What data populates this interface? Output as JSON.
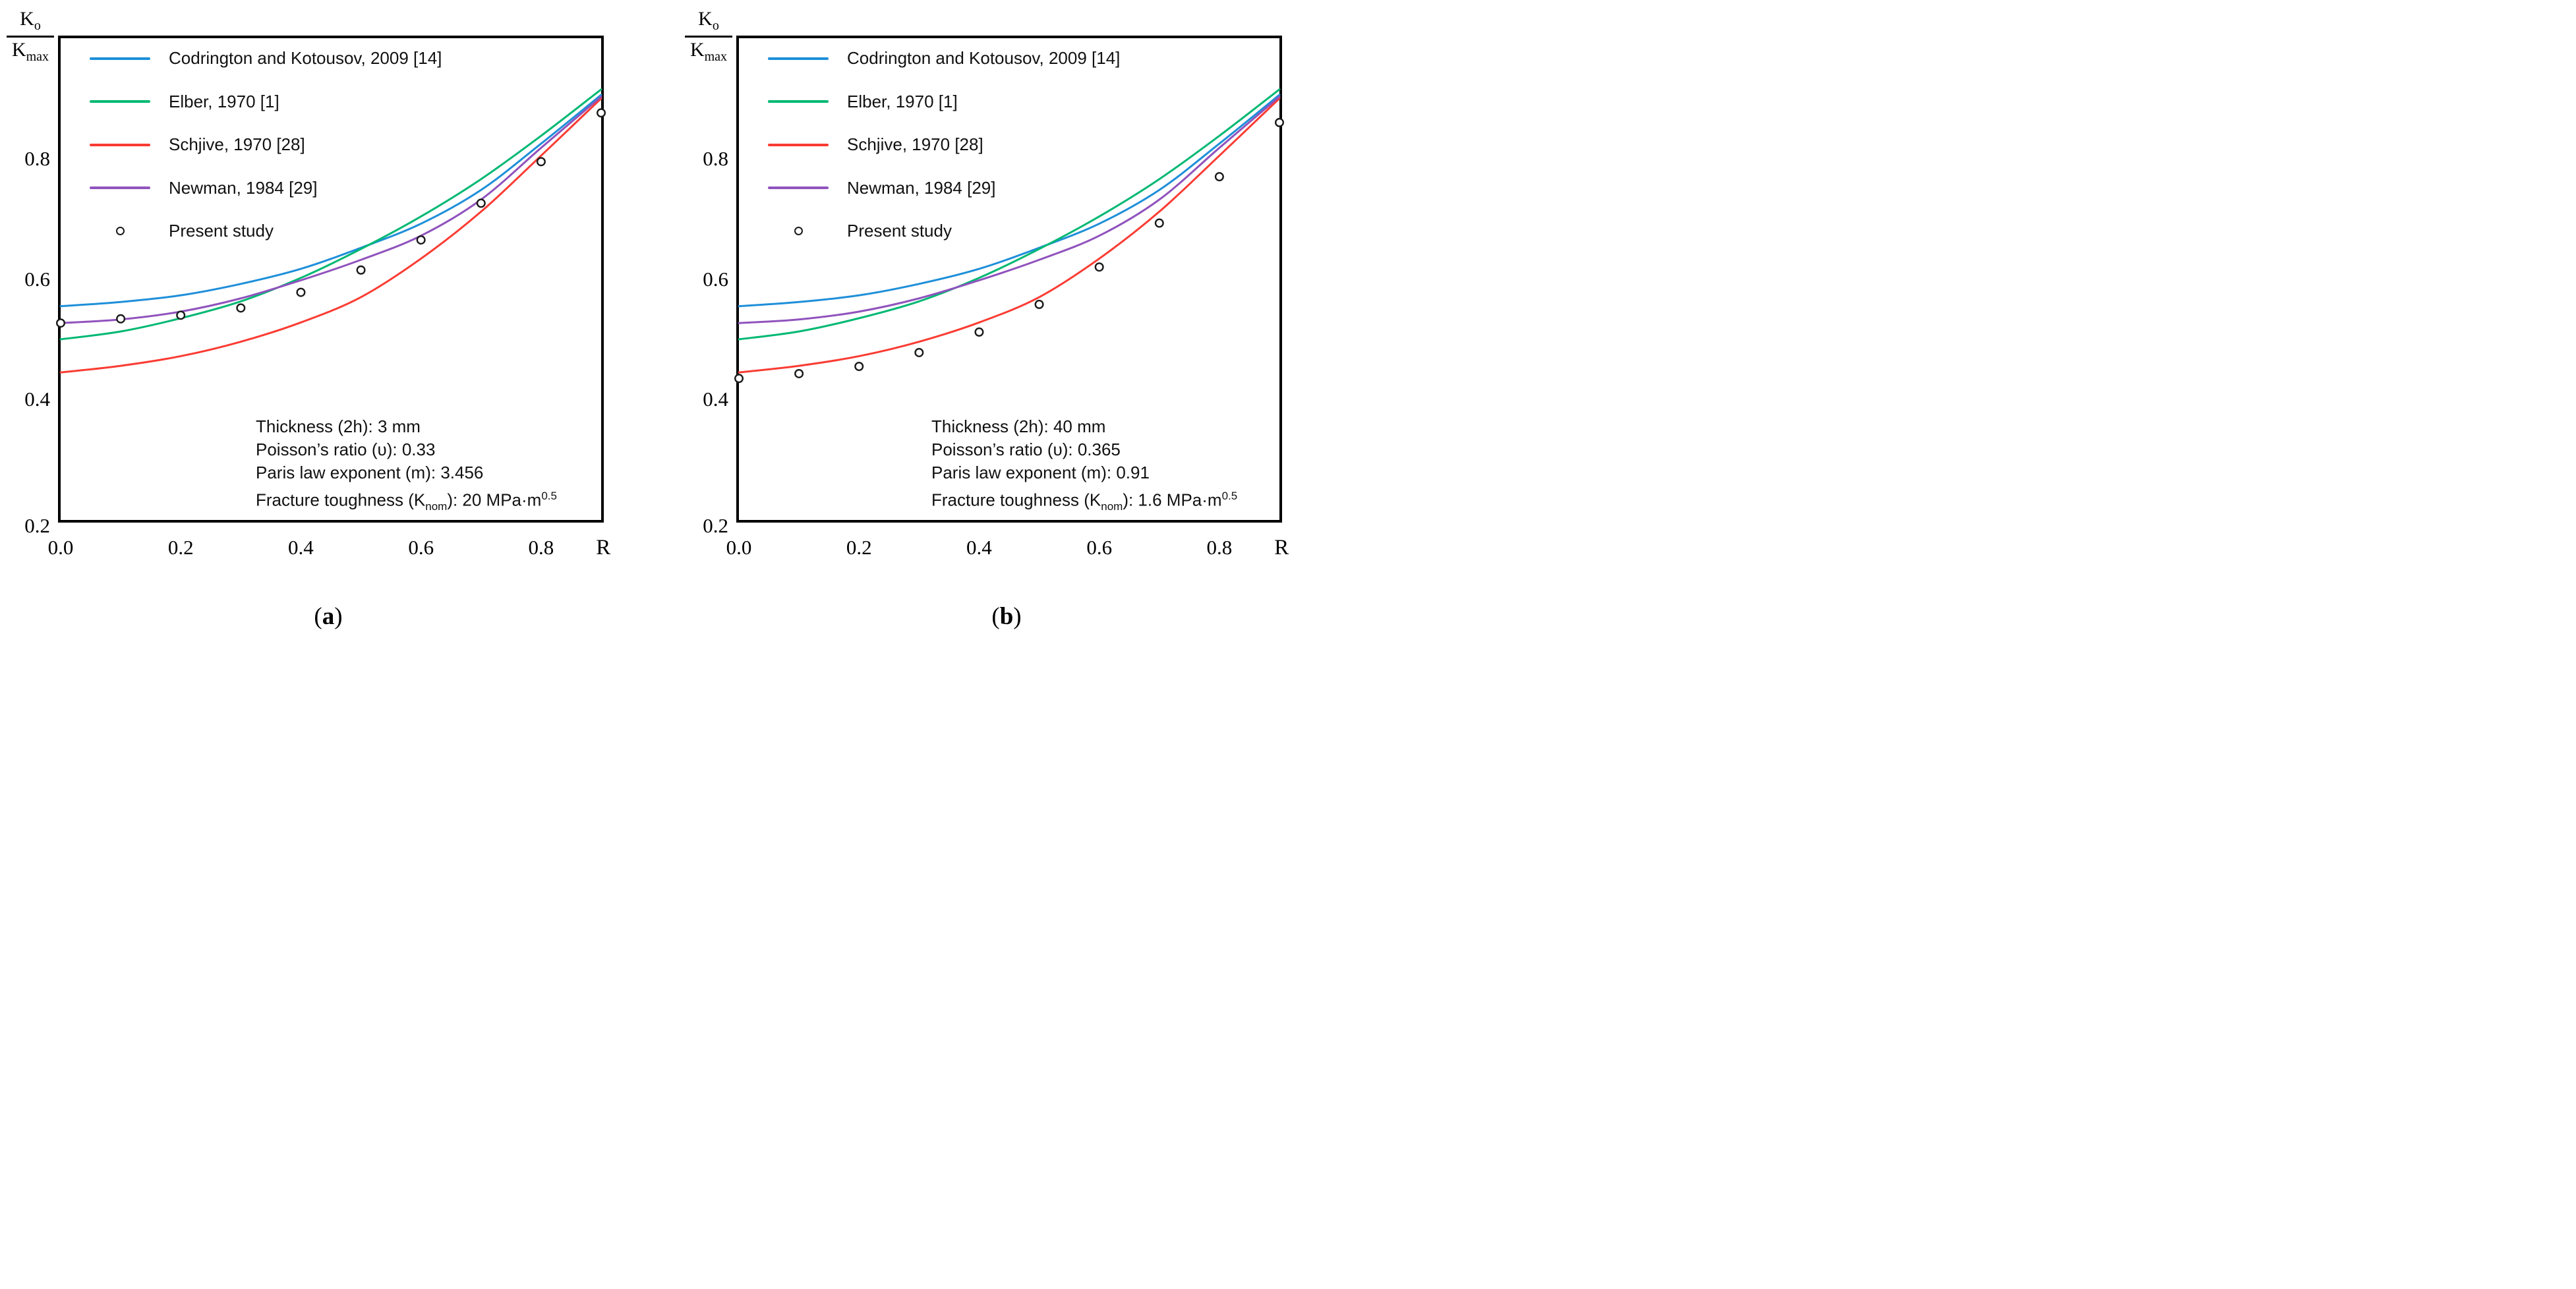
{
  "page": {
    "background": "#ffffff"
  },
  "colors": {
    "codrington": "#1E8FD9",
    "elber": "#00B873",
    "schjive": "#FA3C33",
    "newman": "#9053BD",
    "scatter_stroke": "#1a1a1a",
    "axis": "#000000"
  },
  "axes": {
    "x_end_label": "R",
    "x_ticks": [
      "0.0",
      "0.2",
      "0.4",
      "0.6",
      "0.8"
    ],
    "y_ticks": [
      "0.8",
      "0.6",
      "0.4",
      "0.2"
    ],
    "y_label": {
      "num_base": "K",
      "num_sub": "o",
      "den_base": "K",
      "den_sub": "max"
    }
  },
  "legend": {
    "items": [
      {
        "key": "codrington",
        "type": "line",
        "label": "Codrington and Kotousov, 2009 [14]"
      },
      {
        "key": "elber",
        "type": "line",
        "label": "Elber, 1970 [1]"
      },
      {
        "key": "schjive",
        "type": "line",
        "label": "Schjive, 1970 [28]"
      },
      {
        "key": "newman",
        "type": "line",
        "label": "Newman, 1984 [29]"
      },
      {
        "key": "present",
        "type": "marker",
        "label": "Present study"
      }
    ]
  },
  "panels": [
    {
      "caption_open": "(",
      "caption_letter": "a",
      "caption_close": ")",
      "annotation": {
        "line1": "Thickness (2h): 3 mm",
        "line2": "Poisson’s ratio (υ): 0.33",
        "line3": "Paris law exponent (m): 3.456",
        "line4_prefix": "Fracture toughness (K",
        "line4_sub": "nom",
        "line4_mid": "): 20 MPa·m",
        "line4_sup": "0.5"
      }
    },
    {
      "caption_open": "(",
      "caption_letter": "b",
      "caption_close": ")",
      "annotation": {
        "line1": "Thickness (2h): 40 mm",
        "line2": "Poisson’s ratio (υ): 0.365",
        "line3": "Paris law exponent (m): 0.91",
        "line4_prefix": "Fracture toughness (K",
        "line4_sub": "nom",
        "line4_mid": "): 1.6 MPa·m",
        "line4_sup": "0.5"
      }
    }
  ],
  "chart_data": [
    {
      "type": "line",
      "subtype": "line+scatter",
      "title": "",
      "xlabel": "R",
      "ylabel": "Ko/Kmax",
      "xlim": [
        0,
        0.9
      ],
      "ylim": [
        0.2,
        1.0
      ],
      "grid": false,
      "legend_position": "upper-left-inside",
      "x": [
        0,
        0.1,
        0.2,
        0.3,
        0.4,
        0.5,
        0.6,
        0.7,
        0.8,
        0.9
      ],
      "series": [
        {
          "key": "codrington",
          "name": "Codrington and Kotousov, 2009 [14]",
          "values": [
            0.555,
            0.562,
            0.573,
            0.592,
            0.617,
            0.652,
            0.692,
            0.748,
            0.825,
            0.906
          ]
        },
        {
          "key": "elber",
          "name": "Elber, 1970 [1]",
          "values": [
            0.5,
            0.513,
            0.535,
            0.563,
            0.602,
            0.65,
            0.704,
            0.766,
            0.838,
            0.915
          ]
        },
        {
          "key": "schjive",
          "name": "Schjive, 1970 [28]",
          "values": [
            0.445,
            0.456,
            0.472,
            0.496,
            0.528,
            0.57,
            0.634,
            0.712,
            0.805,
            0.9
          ]
        },
        {
          "key": "newman",
          "name": "Newman, 1984 [29]",
          "values": [
            0.527,
            0.533,
            0.546,
            0.568,
            0.598,
            0.632,
            0.672,
            0.732,
            0.818,
            0.903
          ]
        }
      ],
      "scatter": {
        "key": "present",
        "name": "Present study",
        "values": [
          0.527,
          0.534,
          0.54,
          0.552,
          0.578,
          0.615,
          0.665,
          0.726,
          0.795,
          0.876
        ]
      },
      "params": {
        "thickness_2h": "3 mm",
        "poissons_ratio": 0.33,
        "paris_law_exponent_m": 3.456,
        "fracture_toughness_Knom": "20 MPa·m^0.5"
      }
    },
    {
      "type": "line",
      "subtype": "line+scatter",
      "title": "",
      "xlabel": "R",
      "ylabel": "Ko/Kmax",
      "xlim": [
        0,
        0.9
      ],
      "ylim": [
        0.2,
        1.0
      ],
      "grid": false,
      "legend_position": "upper-left-inside",
      "x": [
        0,
        0.1,
        0.2,
        0.3,
        0.4,
        0.5,
        0.6,
        0.7,
        0.8,
        0.9
      ],
      "series": [
        {
          "key": "codrington",
          "name": "Codrington and Kotousov, 2009 [14]",
          "values": [
            0.555,
            0.562,
            0.573,
            0.592,
            0.617,
            0.652,
            0.692,
            0.748,
            0.825,
            0.906
          ]
        },
        {
          "key": "elber",
          "name": "Elber, 1970 [1]",
          "values": [
            0.5,
            0.513,
            0.535,
            0.563,
            0.602,
            0.65,
            0.704,
            0.766,
            0.838,
            0.915
          ]
        },
        {
          "key": "schjive",
          "name": "Schjive, 1970 [28]",
          "values": [
            0.445,
            0.456,
            0.472,
            0.496,
            0.528,
            0.57,
            0.634,
            0.712,
            0.805,
            0.9
          ]
        },
        {
          "key": "newman",
          "name": "Newman, 1984 [29]",
          "values": [
            0.527,
            0.533,
            0.546,
            0.568,
            0.598,
            0.632,
            0.672,
            0.732,
            0.818,
            0.903
          ]
        }
      ],
      "scatter": {
        "key": "present",
        "name": "Present study",
        "values": [
          0.435,
          0.443,
          0.455,
          0.478,
          0.512,
          0.558,
          0.62,
          0.693,
          0.77,
          0.86
        ]
      },
      "params": {
        "thickness_2h": "40 mm",
        "poissons_ratio": 0.365,
        "paris_law_exponent_m": 0.91,
        "fracture_toughness_Knom": "1.6 MPa·m^0.5"
      }
    }
  ]
}
